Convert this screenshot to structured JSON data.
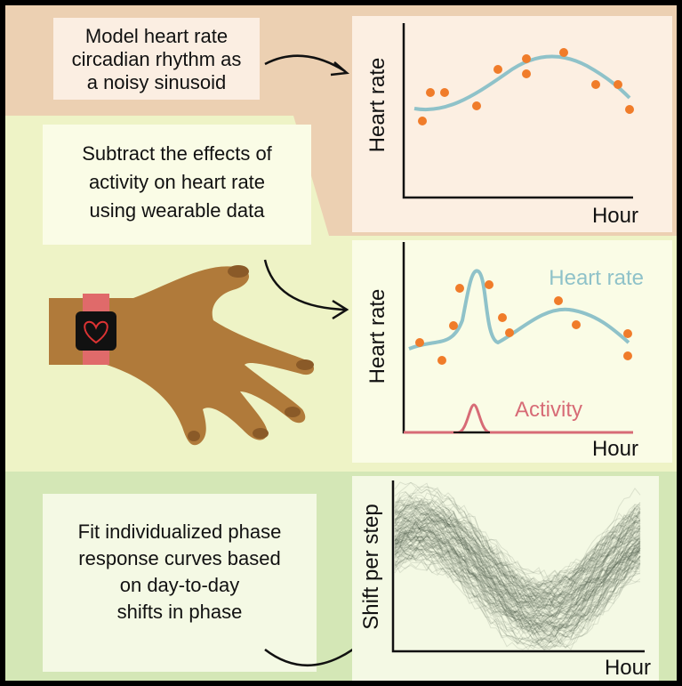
{
  "panels": [
    {
      "text": [
        "Model heart rate",
        "circadian rhythm as",
        "a noisy sinusoid"
      ],
      "chart": {
        "y_label": "Heart rate",
        "x_label": "Hour"
      }
    },
    {
      "text": [
        "Subtract the effects of",
        "activity on heart rate",
        "using wearable data"
      ],
      "chart": {
        "y_label": "Heart rate",
        "x_label": "Hour",
        "series_labels": [
          "Heart rate",
          "Activity"
        ]
      }
    },
    {
      "text": [
        "Fit individualized phase",
        "response curves based",
        "on day-to-day",
        "shifts in phase"
      ],
      "chart": {
        "y_label": "Shift per step",
        "x_label": "Hour"
      }
    }
  ]
}
